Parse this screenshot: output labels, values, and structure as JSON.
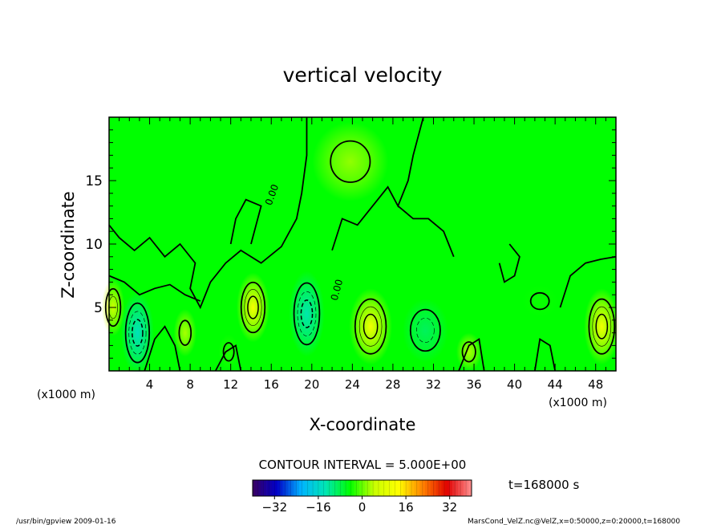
{
  "chart_data": {
    "type": "heatmap",
    "title": "vertical velocity",
    "xlabel": "X-coordinate",
    "ylabel": "Z-coordinate",
    "x_unit_left": "(x1000 m)",
    "x_unit_right": "(x1000 m)",
    "xlim": [
      0,
      50
    ],
    "ylim": [
      0,
      20
    ],
    "x_ticks": [
      4,
      8,
      12,
      16,
      20,
      24,
      28,
      32,
      36,
      40,
      44,
      48
    ],
    "y_ticks": [
      5,
      10,
      15
    ],
    "contour_interval_text": "CONTOUR INTERVAL = 5.000E+00",
    "contour_label": "0.00",
    "time_text": "t=168000 s",
    "colorbar": {
      "range": [
        -40,
        40
      ],
      "ticks": [
        -32,
        -16,
        0,
        16,
        32
      ],
      "colors": [
        "#3a0060",
        "#0000c8",
        "#00b4ff",
        "#00e6b4",
        "#00ff00",
        "#c8ff00",
        "#ffff00",
        "#ff8000",
        "#e00000",
        "#ff9090"
      ]
    },
    "extrema": [
      {
        "x": 2.8,
        "z": 3.0,
        "w": -14,
        "rx": 1.3,
        "rz": 2.6
      },
      {
        "x": 14.2,
        "z": 5.0,
        "w": 12,
        "rx": 1.3,
        "rz": 2.2
      },
      {
        "x": 19.5,
        "z": 4.5,
        "w": -13,
        "rx": 1.4,
        "rz": 2.7
      },
      {
        "x": 25.8,
        "z": 3.5,
        "w": 11,
        "rx": 1.7,
        "rz": 2.4
      },
      {
        "x": 31.2,
        "z": 3.2,
        "w": -9,
        "rx": 1.8,
        "rz": 2.0
      },
      {
        "x": 42.5,
        "z": 5.5,
        "w": -4,
        "rx": 1.4,
        "rz": 1.0
      },
      {
        "x": 48.6,
        "z": 3.5,
        "w": 11,
        "rx": 1.4,
        "rz": 2.4
      },
      {
        "x": 0.4,
        "z": 5.0,
        "w": 5,
        "rx": 0.9,
        "rz": 1.8
      },
      {
        "x": 7.5,
        "z": 3.0,
        "w": 3,
        "rx": 0.9,
        "rz": 1.5
      },
      {
        "x": 35.5,
        "z": 1.5,
        "w": 3,
        "rx": 1.0,
        "rz": 1.2
      },
      {
        "x": 11.8,
        "z": 1.5,
        "w": -3,
        "rx": 0.8,
        "rz": 1.1
      },
      {
        "x": 23.8,
        "z": 16.5,
        "w": 2,
        "rx": 3.0,
        "rz": 2.5
      }
    ]
  },
  "footer": {
    "left": "/usr/bin/gpview  2009-01-16",
    "right": "MarsCond_VelZ.nc@VelZ,x=0:50000,z=0:20000,t=168000"
  },
  "colors": {
    "background": "#00ff00",
    "line": "#000000"
  }
}
